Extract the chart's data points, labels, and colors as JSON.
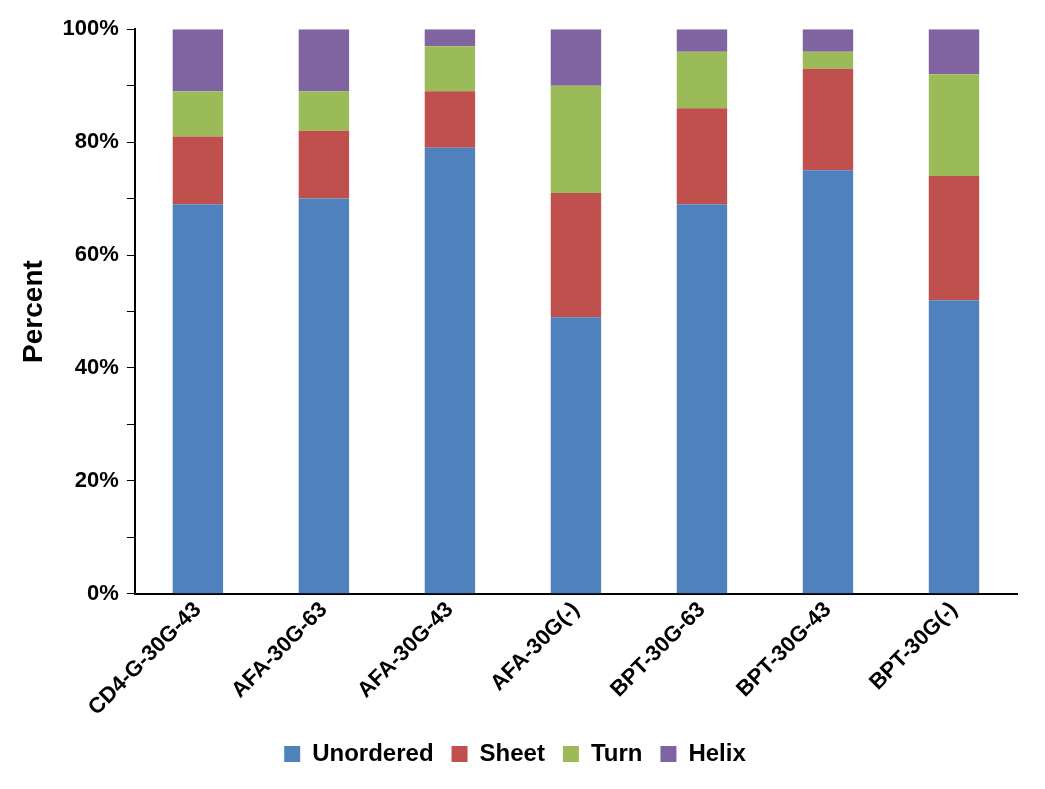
{
  "chart_data": {
    "type": "bar",
    "stacked": true,
    "ylabel": "Percent",
    "categories": [
      "CD4-G-30G-43",
      "AFA-30G-63",
      "AFA-30G-43",
      "AFA-30G(-)",
      "BPT-30G-63",
      "BPT-30G-43",
      "BPT-30G(-)"
    ],
    "series": [
      {
        "name": "Unordered",
        "color": "#4f81bd",
        "values": [
          69,
          70,
          79,
          49,
          69,
          75,
          52
        ]
      },
      {
        "name": "Sheet",
        "color": "#c0504d",
        "values": [
          12,
          12,
          10,
          22,
          17,
          18,
          22
        ]
      },
      {
        "name": "Turn",
        "color": "#9bbb59",
        "values": [
          8,
          7,
          8,
          19,
          10,
          3,
          18
        ]
      },
      {
        "name": "Helix",
        "color": "#8064a2",
        "values": [
          11,
          11,
          3,
          10,
          4,
          4,
          8
        ]
      }
    ],
    "ylim": [
      0,
      100
    ],
    "yticks": [
      {
        "value": 0,
        "label": "0%"
      },
      {
        "value": 10,
        "label": null
      },
      {
        "value": 20,
        "label": "20%"
      },
      {
        "value": 30,
        "label": null
      },
      {
        "value": 40,
        "label": "40%"
      },
      {
        "value": 50,
        "label": null
      },
      {
        "value": 60,
        "label": "60%"
      },
      {
        "value": 70,
        "label": null
      },
      {
        "value": 80,
        "label": "80%"
      },
      {
        "value": 90,
        "label": null
      },
      {
        "value": 100,
        "label": "100%"
      }
    ],
    "grid": false,
    "legend": "bottom"
  }
}
